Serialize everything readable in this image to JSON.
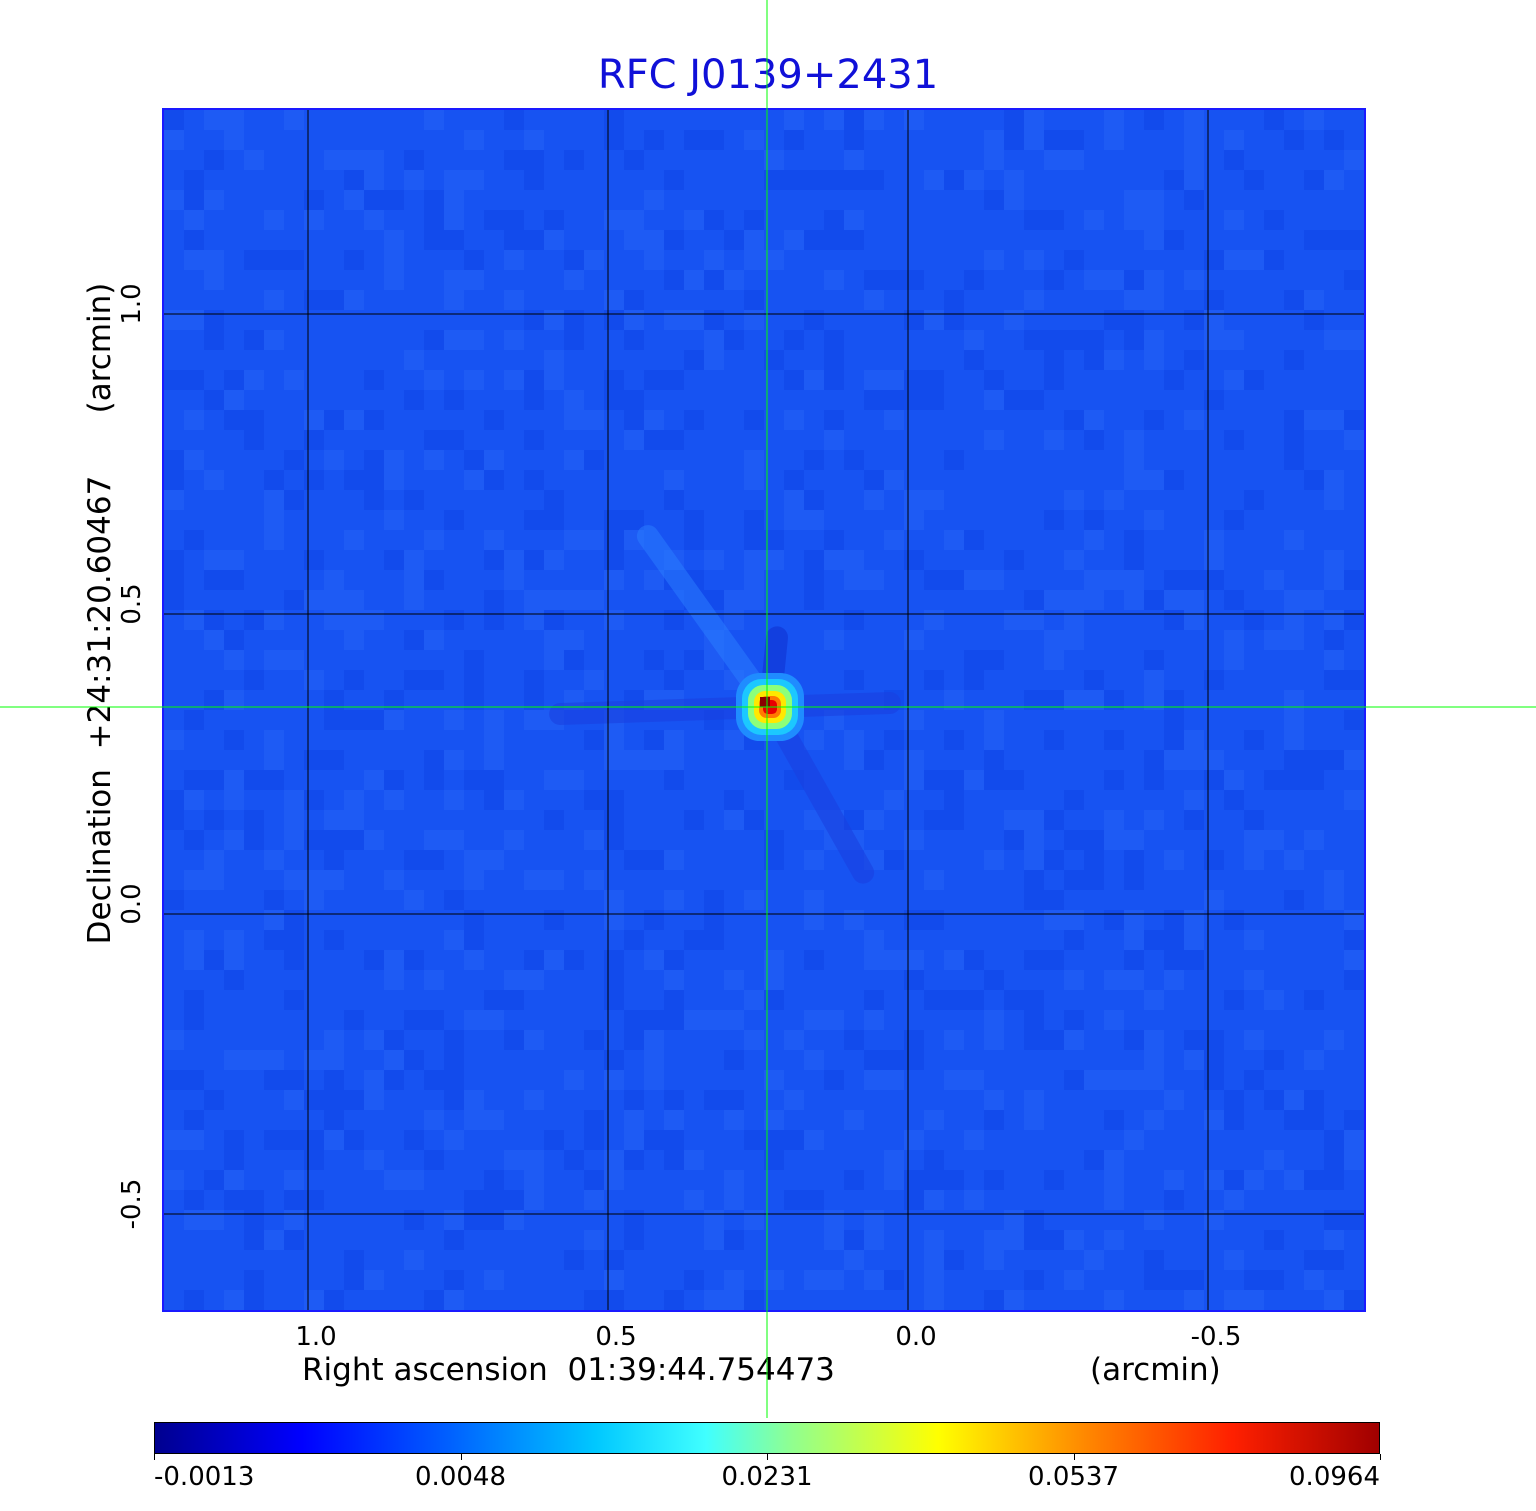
{
  "chart_data": {
    "type": "heatmap",
    "title": "RFC J0139+2431",
    "xlabel": "Right ascension  01:39:44.754473",
    "xunit": "(arcmin)",
    "ylabel": "Declination  +24:31:20.60467",
    "yunit": "(arcmin)",
    "xlim": [
      1.24,
      -0.76
    ],
    "ylim": [
      -0.66,
      1.34
    ],
    "x_ticks": [
      1.0,
      0.5,
      0.0,
      -0.5
    ],
    "x_tick_labels": [
      "1.0",
      "0.5",
      "0.0",
      "-0.5"
    ],
    "y_ticks": [
      1.0,
      0.5,
      0.0,
      -0.5
    ],
    "y_tick_labels": [
      "1.0",
      "0.5",
      "0.0",
      "-0.5"
    ],
    "grid": true,
    "grid_color": "#000000",
    "background_color": "#1753f2",
    "colormap": "jet",
    "source": {
      "x": 0.23,
      "y": 0.345,
      "peak": 0.0964
    },
    "crosshair": {
      "x": 0.235,
      "y": 0.345,
      "color": "#00ff00"
    },
    "colorbar": {
      "ticks": [
        -0.0013,
        0.0048,
        0.0231,
        0.0537,
        0.0964
      ],
      "tick_labels": [
        "-0.0013",
        "0.0048",
        "0.0231",
        "0.0537",
        "0.0964"
      ]
    }
  }
}
